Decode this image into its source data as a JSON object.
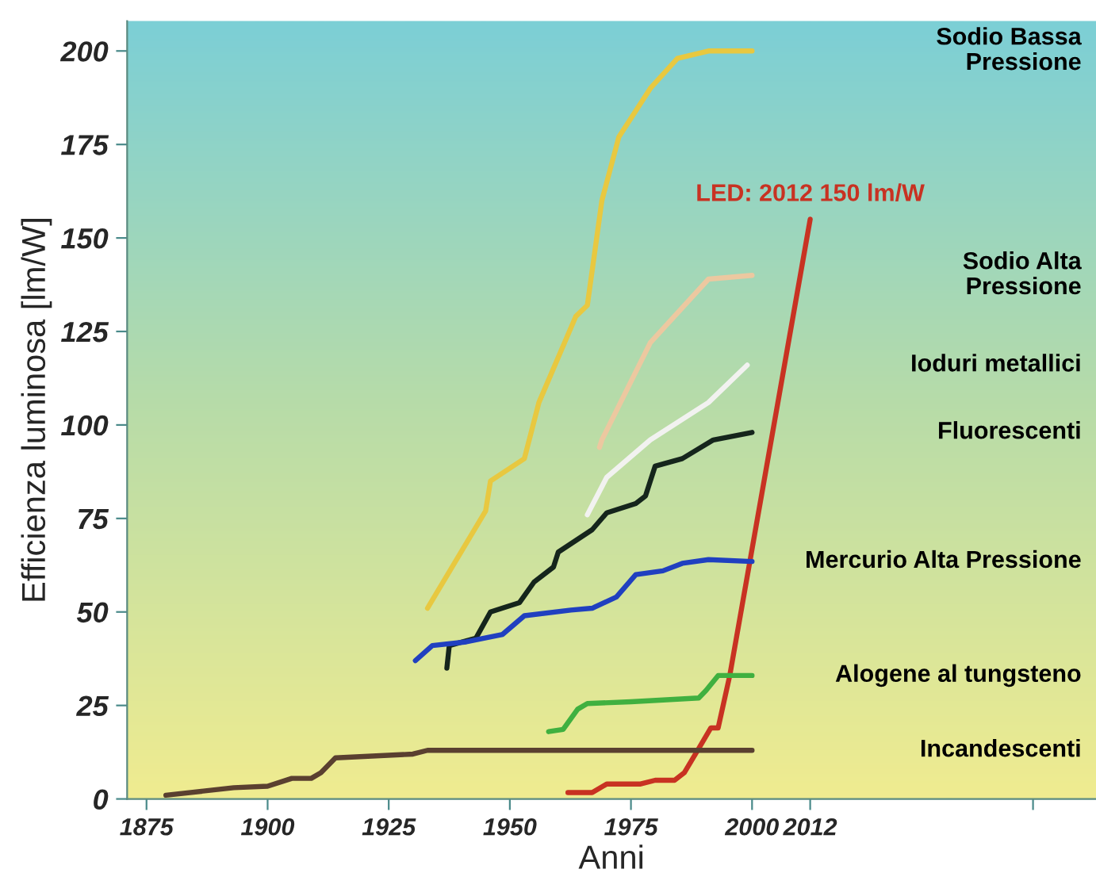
{
  "chart_data": {
    "type": "line",
    "xlabel": "Anni",
    "ylabel": "Efficienza luminosa [lm/W]",
    "xlim": [
      1871,
      2071
    ],
    "ylim": [
      0,
      208
    ],
    "xticks": [
      1875,
      1900,
      1925,
      1950,
      1975,
      2000,
      2012,
      {
        "value": 2058,
        "label": null
      }
    ],
    "yticks": [
      0,
      25,
      50,
      75,
      100,
      125,
      150,
      175,
      200
    ],
    "grid": false,
    "legend": false,
    "series": [
      {
        "color": "#e8c840",
        "x": [
          1933,
          1945,
          1946,
          1953,
          1956,
          1963.6,
          1966,
          1969,
          1972.5,
          1979,
          1984.6,
          1991,
          2000
        ],
        "values": [
          51,
          77,
          85,
          91,
          106,
          129,
          132,
          160,
          177,
          190,
          198,
          200,
          200
        ]
      },
      {
        "name": "LED: 2012 150 lm/W",
        "color": "#c83222",
        "x": [
          1962,
          1967,
          1970,
          1977,
          1980,
          1984,
          1986,
          1989,
          1991.5,
          1993,
          1995.4,
          2012
        ],
        "values": [
          1.7,
          1.7,
          4,
          4,
          5,
          5,
          7,
          13.5,
          19,
          19,
          33,
          155
        ]
      },
      {
        "color": "#ecc8a0",
        "x": [
          1968.5,
          1969,
          1979,
          1991,
          2000
        ],
        "values": [
          94,
          96,
          122,
          139,
          140
        ]
      },
      {
        "color": "#f2f2f0",
        "x": [
          1966,
          1970,
          1979,
          1991,
          1999
        ],
        "values": [
          76,
          86,
          96,
          106,
          116
        ]
      },
      {
        "color": "#15251c",
        "x": [
          1937,
          1937.5,
          1943,
          1946,
          1952,
          1955,
          1959,
          1960,
          1967,
          1970,
          1976,
          1978,
          1980,
          1985.6,
          1992,
          2000
        ],
        "values": [
          35,
          41,
          43,
          50,
          52.5,
          58,
          62,
          66,
          72,
          76.5,
          79,
          81,
          89,
          91,
          96,
          98
        ]
      },
      {
        "color": "#2040c0",
        "x": [
          1930.5,
          1934,
          1941,
          1948.5,
          1953,
          1962.6,
          1967,
          1972,
          1976,
          1981.6,
          1985.6,
          1991,
          2000
        ],
        "values": [
          37,
          41,
          42,
          44,
          49,
          50.5,
          51,
          54,
          60,
          61,
          63,
          64,
          63.5
        ]
      },
      {
        "color": "#40b040",
        "x": [
          1958,
          1961,
          1964,
          1966,
          1975,
          1989,
          1990.5,
          1993,
          2000
        ],
        "values": [
          18,
          18.6,
          24,
          25.5,
          26,
          27,
          29,
          33,
          33
        ]
      },
      {
        "color": "#5a4030",
        "x": [
          1879,
          1893,
          1900,
          1905,
          1909,
          1911,
          1914,
          1930,
          1933,
          2000
        ],
        "values": [
          1,
          3,
          3.4,
          5.5,
          5.5,
          7,
          11,
          12,
          13,
          13
        ]
      }
    ],
    "annotations": [
      "Sodio Bassa\nPressione",
      "Sodio Alta\nPressione",
      "Ioduri metallici",
      "Fluorescenti",
      "Mercurio Alta Pressione",
      "Alogene al tungsteno",
      "Incandescenti"
    ]
  }
}
